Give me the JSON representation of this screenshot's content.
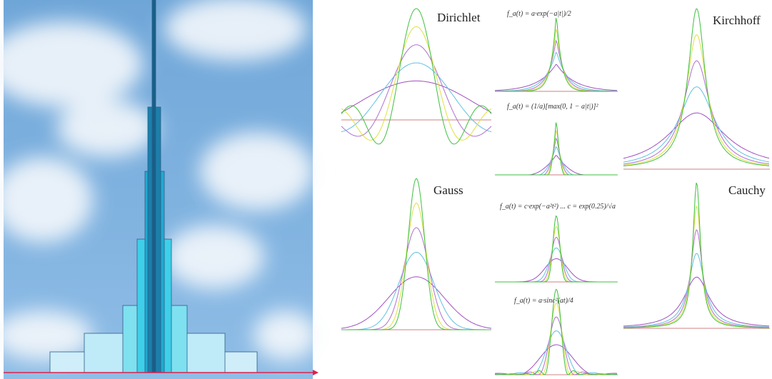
{
  "labels": {
    "dirichlet": "Dirichlet",
    "gauss": "Gauss",
    "kirchhoff": "Kirchhoff",
    "cauchy": "Cauchy"
  },
  "formulas": [
    "f_a(t) = a·exp(−a|t|)/2",
    "f_a(t) = (1/a)[max(0, 1 − a|t|)]²",
    "f_a(t) = c·exp(−a²t²) ... c = exp(0.25)/√a",
    "f_a(t) = a·sinc²(at)/4"
  ]
}
